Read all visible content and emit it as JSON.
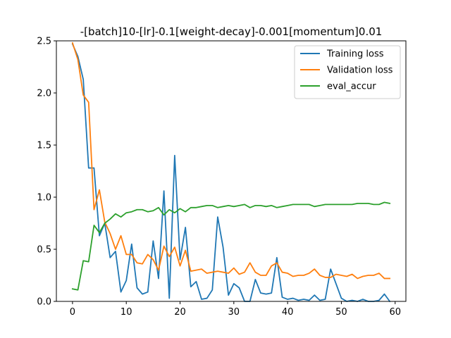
{
  "chart_data": {
    "type": "line",
    "title": "-[batch]10-[lr]-0.1[weight-decay]-0.001[momentum]0.01",
    "xlabel": "",
    "ylabel": "",
    "xlim": [
      -3,
      62
    ],
    "ylim": [
      0,
      2.5
    ],
    "x_ticks": [
      0,
      10,
      20,
      30,
      40,
      50,
      60
    ],
    "y_ticks": [
      0.0,
      0.5,
      1.0,
      1.5,
      2.0,
      2.5
    ],
    "x_tick_labels": [
      "0",
      "10",
      "20",
      "30",
      "40",
      "50",
      "60"
    ],
    "y_tick_labels": [
      "0.0",
      "0.5",
      "1.0",
      "1.5",
      "2.0",
      "2.5"
    ],
    "grid": false,
    "legend_position": "top-right",
    "x": [
      0,
      1,
      2,
      3,
      4,
      5,
      6,
      7,
      8,
      9,
      10,
      11,
      12,
      13,
      14,
      15,
      16,
      17,
      18,
      19,
      20,
      21,
      22,
      23,
      24,
      25,
      26,
      27,
      28,
      29,
      30,
      31,
      32,
      33,
      34,
      35,
      36,
      37,
      38,
      39,
      40,
      41,
      42,
      43,
      44,
      45,
      46,
      47,
      48,
      49,
      50,
      51,
      52,
      53,
      54,
      55,
      56,
      57,
      58,
      59
    ],
    "series": [
      {
        "name": "Training loss",
        "color": "#1f77b4",
        "values": [
          2.47,
          2.35,
          2.13,
          1.28,
          1.28,
          0.63,
          0.75,
          0.42,
          0.48,
          0.09,
          0.2,
          0.55,
          0.13,
          0.07,
          0.09,
          0.58,
          0.22,
          1.06,
          0.03,
          1.4,
          0.4,
          0.71,
          0.14,
          0.19,
          0.02,
          0.03,
          0.11,
          0.81,
          0.52,
          0.06,
          0.17,
          0.13,
          0.0,
          0.0,
          0.21,
          0.08,
          0.07,
          0.08,
          0.42,
          0.04,
          0.02,
          0.03,
          0.01,
          0.02,
          0.01,
          0.06,
          0.01,
          0.02,
          0.31,
          0.17,
          0.03,
          0.0,
          0.01,
          0.0,
          0.02,
          0.0,
          0.0,
          0.01,
          0.07,
          0.0
        ]
      },
      {
        "name": "Validation loss",
        "color": "#ff7f0e",
        "values": [
          2.48,
          2.32,
          1.98,
          1.91,
          0.88,
          1.07,
          0.76,
          0.65,
          0.5,
          0.63,
          0.45,
          0.45,
          0.37,
          0.36,
          0.45,
          0.4,
          0.3,
          0.53,
          0.43,
          0.52,
          0.34,
          0.49,
          0.29,
          0.3,
          0.31,
          0.27,
          0.28,
          0.29,
          0.28,
          0.27,
          0.32,
          0.26,
          0.28,
          0.37,
          0.28,
          0.25,
          0.25,
          0.34,
          0.37,
          0.28,
          0.27,
          0.24,
          0.25,
          0.25,
          0.27,
          0.31,
          0.25,
          0.23,
          0.23,
          0.26,
          0.25,
          0.24,
          0.26,
          0.22,
          0.24,
          0.25,
          0.25,
          0.27,
          0.22,
          0.22
        ]
      },
      {
        "name": "eval_accur",
        "color": "#2ca02c",
        "values": [
          0.12,
          0.11,
          0.39,
          0.38,
          0.73,
          0.66,
          0.75,
          0.79,
          0.84,
          0.81,
          0.85,
          0.86,
          0.88,
          0.88,
          0.86,
          0.87,
          0.9,
          0.83,
          0.88,
          0.85,
          0.89,
          0.86,
          0.9,
          0.9,
          0.91,
          0.92,
          0.92,
          0.9,
          0.91,
          0.92,
          0.91,
          0.92,
          0.93,
          0.9,
          0.92,
          0.92,
          0.91,
          0.92,
          0.9,
          0.91,
          0.92,
          0.93,
          0.93,
          0.93,
          0.93,
          0.91,
          0.92,
          0.93,
          0.93,
          0.93,
          0.93,
          0.93,
          0.93,
          0.94,
          0.94,
          0.94,
          0.93,
          0.93,
          0.95,
          0.94
        ]
      }
    ]
  }
}
